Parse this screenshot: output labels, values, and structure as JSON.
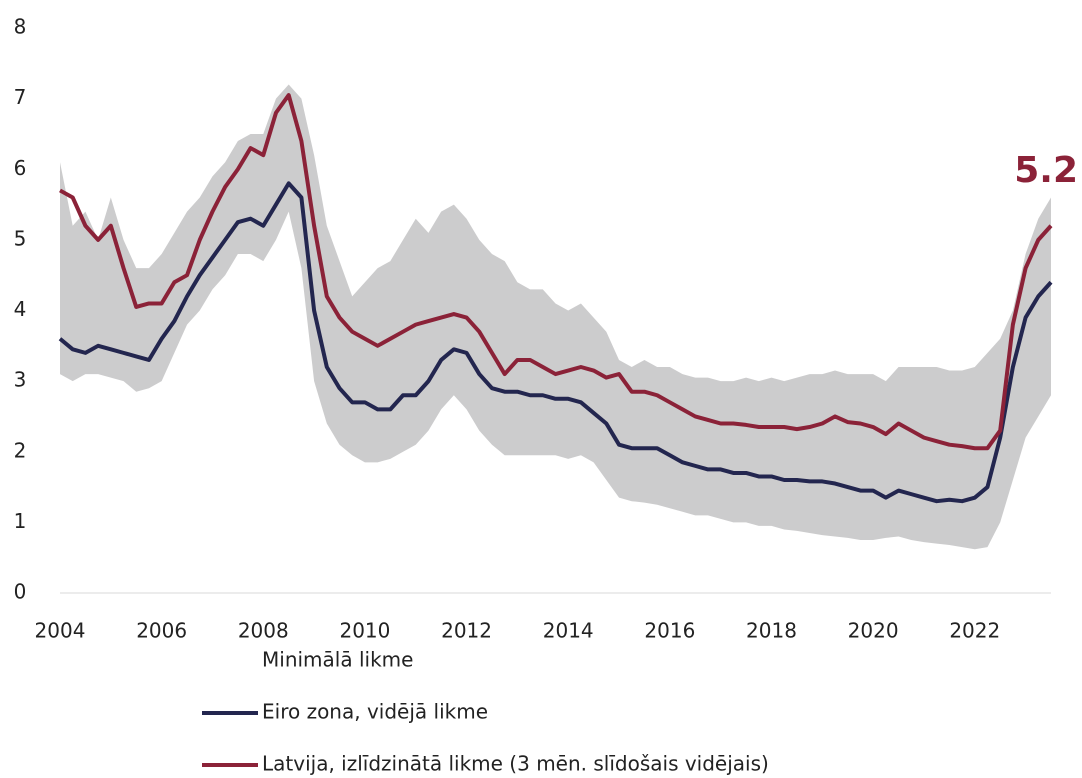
{
  "chart_data": {
    "type": "line",
    "x": [
      2004,
      2004.25,
      2004.5,
      2004.75,
      2005,
      2005.25,
      2005.5,
      2005.75,
      2006,
      2006.25,
      2006.5,
      2006.75,
      2007,
      2007.25,
      2007.5,
      2007.75,
      2008,
      2008.25,
      2008.5,
      2008.75,
      2009,
      2009.25,
      2009.5,
      2009.75,
      2010,
      2010.25,
      2010.5,
      2010.75,
      2011,
      2011.25,
      2011.5,
      2011.75,
      2012,
      2012.25,
      2012.5,
      2012.75,
      2013,
      2013.25,
      2013.5,
      2013.75,
      2014,
      2014.25,
      2014.5,
      2014.75,
      2015,
      2015.25,
      2015.5,
      2015.75,
      2016,
      2016.25,
      2016.5,
      2016.75,
      2017,
      2017.25,
      2017.5,
      2017.75,
      2018,
      2018.25,
      2018.5,
      2018.75,
      2019,
      2019.25,
      2019.5,
      2019.75,
      2020,
      2020.25,
      2020.5,
      2020.75,
      2021,
      2021.25,
      2021.5,
      2021.75,
      2022,
      2022.25,
      2022.5,
      2022.75,
      2023,
      2023.25,
      2023.5
    ],
    "band": {
      "name": "Minimālā likme",
      "color": "#cccccd",
      "lower": [
        3.1,
        3.0,
        3.1,
        3.1,
        3.05,
        3.0,
        2.85,
        2.9,
        3.0,
        3.4,
        3.8,
        4.0,
        4.3,
        4.5,
        4.8,
        4.8,
        4.7,
        5.0,
        5.4,
        4.6,
        3.0,
        2.4,
        2.1,
        1.95,
        1.85,
        1.85,
        1.9,
        2.0,
        2.1,
        2.3,
        2.6,
        2.8,
        2.6,
        2.3,
        2.1,
        1.95,
        1.95,
        1.95,
        1.95,
        1.95,
        1.9,
        1.95,
        1.85,
        1.6,
        1.35,
        1.3,
        1.28,
        1.25,
        1.2,
        1.15,
        1.1,
        1.1,
        1.05,
        1.0,
        1.0,
        0.95,
        0.95,
        0.9,
        0.88,
        0.85,
        0.82,
        0.8,
        0.78,
        0.75,
        0.75,
        0.78,
        0.8,
        0.75,
        0.72,
        0.7,
        0.68,
        0.65,
        0.62,
        0.65,
        1.0,
        1.6,
        2.2,
        2.5,
        2.8
      ],
      "upper": [
        6.1,
        5.2,
        5.4,
        5.0,
        5.6,
        5.0,
        4.6,
        4.6,
        4.8,
        5.1,
        5.4,
        5.6,
        5.9,
        6.1,
        6.4,
        6.5,
        6.5,
        7.0,
        7.2,
        7.0,
        6.2,
        5.2,
        4.7,
        4.2,
        4.4,
        4.6,
        4.7,
        5.0,
        5.3,
        5.1,
        5.4,
        5.5,
        5.3,
        5.0,
        4.8,
        4.7,
        4.4,
        4.3,
        4.3,
        4.1,
        4.0,
        4.1,
        3.9,
        3.7,
        3.3,
        3.2,
        3.3,
        3.2,
        3.2,
        3.1,
        3.05,
        3.05,
        3.0,
        3.0,
        3.05,
        3.0,
        3.05,
        3.0,
        3.05,
        3.1,
        3.1,
        3.15,
        3.1,
        3.1,
        3.1,
        3.0,
        3.2,
        3.2,
        3.2,
        3.2,
        3.15,
        3.15,
        3.2,
        3.4,
        3.6,
        4.0,
        4.8,
        5.3,
        5.6
      ]
    },
    "series": [
      {
        "name": "Eiro zona, vidējā likme",
        "color": "#23264f",
        "values": [
          3.6,
          3.45,
          3.4,
          3.5,
          3.45,
          3.4,
          3.35,
          3.3,
          3.6,
          3.85,
          4.2,
          4.5,
          4.75,
          5.0,
          5.25,
          5.3,
          5.2,
          5.5,
          5.8,
          5.6,
          4.0,
          3.2,
          2.9,
          2.7,
          2.7,
          2.6,
          2.6,
          2.8,
          2.8,
          3.0,
          3.3,
          3.45,
          3.4,
          3.1,
          2.9,
          2.85,
          2.85,
          2.8,
          2.8,
          2.75,
          2.75,
          2.7,
          2.55,
          2.4,
          2.1,
          2.05,
          2.05,
          2.05,
          1.95,
          1.85,
          1.8,
          1.75,
          1.75,
          1.7,
          1.7,
          1.65,
          1.65,
          1.6,
          1.6,
          1.58,
          1.58,
          1.55,
          1.5,
          1.45,
          1.45,
          1.35,
          1.45,
          1.4,
          1.35,
          1.3,
          1.32,
          1.3,
          1.35,
          1.5,
          2.2,
          3.2,
          3.9,
          4.2,
          4.4
        ]
      },
      {
        "name": "Latvija, izlīdzinātā likme (3 mēn. slīdošais vidējais)",
        "color": "#8b2238",
        "values": [
          5.7,
          5.6,
          5.2,
          5.0,
          5.2,
          4.6,
          4.05,
          4.1,
          4.1,
          4.4,
          4.5,
          5.0,
          5.4,
          5.75,
          6.0,
          6.3,
          6.2,
          6.8,
          7.05,
          6.4,
          5.2,
          4.2,
          3.9,
          3.7,
          3.6,
          3.5,
          3.6,
          3.7,
          3.8,
          3.85,
          3.9,
          3.95,
          3.9,
          3.7,
          3.4,
          3.1,
          3.3,
          3.3,
          3.2,
          3.1,
          3.15,
          3.2,
          3.15,
          3.05,
          3.1,
          2.85,
          2.85,
          2.8,
          2.7,
          2.6,
          2.5,
          2.45,
          2.4,
          2.4,
          2.38,
          2.35,
          2.35,
          2.35,
          2.32,
          2.35,
          2.4,
          2.5,
          2.42,
          2.4,
          2.35,
          2.25,
          2.4,
          2.3,
          2.2,
          2.15,
          2.1,
          2.08,
          2.05,
          2.05,
          2.3,
          3.8,
          4.6,
          5.0,
          5.2
        ]
      }
    ],
    "annotation": "5.2",
    "xlim": [
      2004,
      2023.5
    ],
    "xticks": [
      2004,
      2006,
      2008,
      2010,
      2012,
      2014,
      2016,
      2018,
      2020,
      2022
    ],
    "ylim": [
      0,
      8
    ],
    "yticks": [
      0,
      1,
      2,
      3,
      4,
      5,
      6,
      7,
      8
    ],
    "grid": false
  }
}
